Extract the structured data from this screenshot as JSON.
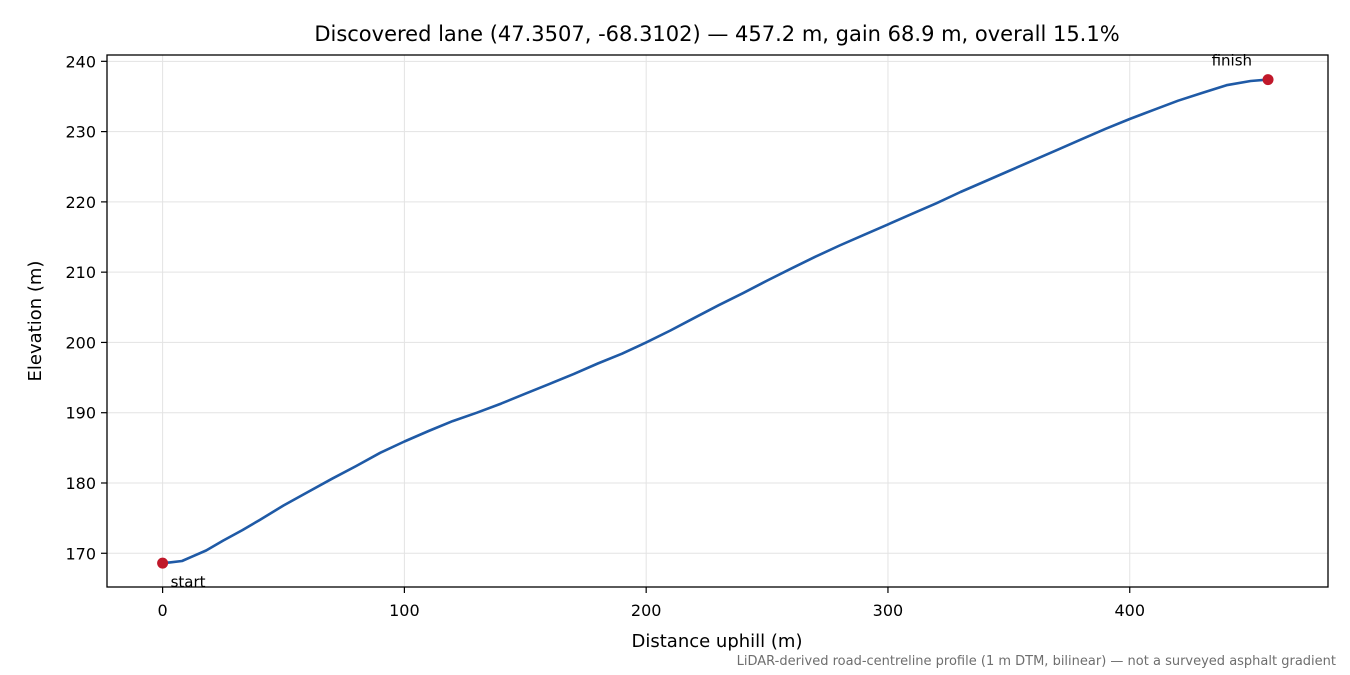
{
  "chart_data": {
    "type": "line",
    "title": "Discovered lane (47.3507, -68.3102) — 457.2 m, gain 68.9 m, overall 15.1%",
    "xlabel": "Distance uphill (m)",
    "ylabel": "Elevation (m)",
    "xlim": [
      -23,
      482
    ],
    "ylim": [
      165.2,
      240.9
    ],
    "x_ticks": [
      0,
      100,
      200,
      300,
      400
    ],
    "y_ticks": [
      170,
      180,
      190,
      200,
      210,
      220,
      230,
      240
    ],
    "grid": true,
    "series": [
      {
        "color": "#1f5aa6",
        "x": [
          0,
          3,
          8,
          12,
          18,
          25,
          33,
          40,
          50,
          60,
          70,
          80,
          90,
          100,
          110,
          120,
          130,
          140,
          150,
          160,
          170,
          180,
          190,
          200,
          210,
          220,
          230,
          240,
          250,
          260,
          270,
          280,
          290,
          300,
          310,
          320,
          330,
          340,
          350,
          360,
          370,
          380,
          390,
          400,
          410,
          420,
          430,
          440,
          450,
          457.2
        ],
        "y": [
          168.6,
          168.7,
          168.9,
          169.5,
          170.4,
          171.8,
          173.3,
          174.7,
          176.8,
          178.7,
          180.6,
          182.4,
          184.3,
          185.9,
          187.4,
          188.8,
          190.0,
          191.3,
          192.7,
          194.1,
          195.5,
          197.0,
          198.4,
          200.0,
          201.7,
          203.5,
          205.3,
          207.0,
          208.8,
          210.5,
          212.2,
          213.8,
          215.3,
          216.8,
          218.3,
          219.8,
          221.4,
          222.9,
          224.4,
          225.9,
          227.4,
          228.9,
          230.4,
          231.8,
          233.1,
          234.4,
          235.5,
          236.6,
          237.2,
          237.4
        ]
      }
    ],
    "markers": [
      {
        "label": "start",
        "x": 0,
        "y": 168.6,
        "color": "#c0182a"
      },
      {
        "label": "finish",
        "x": 457.2,
        "y": 237.4,
        "color": "#c0182a"
      }
    ],
    "footnote": "LiDAR-derived road-centreline profile (1 m DTM, bilinear) — not a surveyed asphalt gradient"
  }
}
